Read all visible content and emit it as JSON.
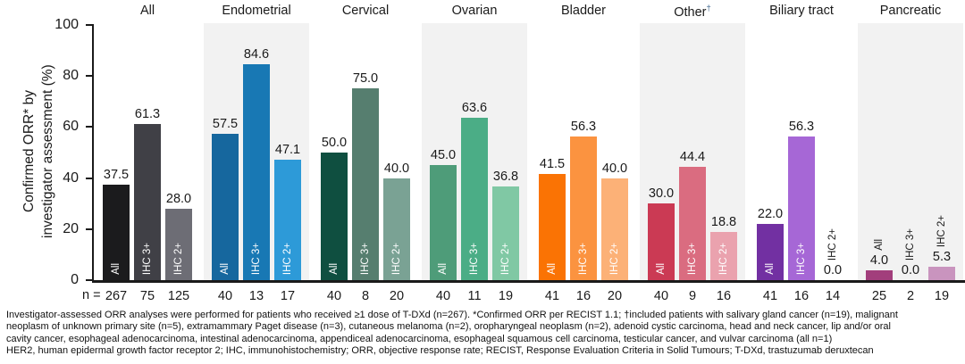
{
  "figure": {
    "y_axis_title_line1": "Confirmed ORR* by",
    "y_axis_title_line2": "investigator assessment (%)",
    "n_prefix": "n =",
    "footnote_lines": [
      "Investigator-assessed ORR analyses were performed for patients who received ≥1 dose of T-DXd (n=267). *Confirmed ORR per RECIST 1.1; †included patients with salivary gland cancer (n=19), malignant",
      "neoplasm of unknown primary site (n=5), extramammary Paget disease (n=3), cutaneous melanoma (n=2), oropharyngeal neoplasm (n=2), adenoid cystic carcinoma, head and neck cancer, lip and/or oral",
      "cavity cancer, esophageal adenocarcinoma, intestinal adenocarcinoma, appendiceal adenocarcinoma, esophageal squamous cell carcinoma, testicular cancer, and vulvar carcinoma (all n=1)",
      "HER2, human epidermal growth factor receptor 2; IHC, immunohistochemistry; ORR, objective response rate; RECIST, Response Evaluation Criteria in Solid Tumours; T-DXd, trastuzumab deruxtecan"
    ]
  },
  "chart_data": {
    "type": "bar",
    "title": "",
    "xlabel": "",
    "ylabel": "Confirmed ORR* by investigator assessment (%)",
    "ylim": [
      0,
      100
    ],
    "yticks": [
      0,
      20,
      40,
      60,
      80,
      100
    ],
    "grid": false,
    "legend_position": "none",
    "bar_labels": [
      "All",
      "IHC 3+",
      "IHC 2+"
    ],
    "groups": [
      {
        "label": "All",
        "sup": "",
        "shaded": false,
        "values": [
          37.5,
          61.3,
          28.0
        ],
        "n": [
          267,
          75,
          125
        ],
        "colors": [
          "#1b1b1d",
          "#404046",
          "#6d6d75"
        ]
      },
      {
        "label": "Endometrial",
        "sup": "",
        "shaded": true,
        "values": [
          57.5,
          84.6,
          47.1
        ],
        "n": [
          40,
          13,
          17
        ],
        "colors": [
          "#16679e",
          "#1878b4",
          "#2d9ad8"
        ]
      },
      {
        "label": "Cervical",
        "sup": "",
        "shaded": false,
        "values": [
          50.0,
          75.0,
          40.0
        ],
        "n": [
          40,
          8,
          20
        ],
        "colors": [
          "#0f4f40",
          "#567e6f",
          "#7aa294"
        ]
      },
      {
        "label": "Ovarian",
        "sup": "",
        "shaded": true,
        "values": [
          45.0,
          63.6,
          36.8
        ],
        "n": [
          40,
          11,
          19
        ],
        "colors": [
          "#4e9c79",
          "#4bad86",
          "#80c8a4"
        ]
      },
      {
        "label": "Bladder",
        "sup": "",
        "shaded": false,
        "values": [
          41.5,
          56.3,
          40.0
        ],
        "n": [
          41,
          16,
          20
        ],
        "colors": [
          "#fa7304",
          "#fb9340",
          "#fcb177"
        ]
      },
      {
        "label": "Other",
        "sup": "†",
        "shaded": true,
        "values": [
          30.0,
          44.4,
          18.8
        ],
        "n": [
          40,
          9,
          16
        ],
        "colors": [
          "#cb3a54",
          "#da6c80",
          "#eaa2ae"
        ]
      },
      {
        "label": "Biliary tract",
        "sup": "",
        "shaded": false,
        "values": [
          22.0,
          56.3,
          0.0
        ],
        "n": [
          41,
          16,
          14
        ],
        "colors": [
          "#7230a2",
          "#a667d6",
          "#a667d6"
        ]
      },
      {
        "label": "Pancreatic",
        "sup": "",
        "shaded": true,
        "values": [
          4.0,
          0.0,
          5.3
        ],
        "n": [
          25,
          2,
          19
        ],
        "colors": [
          "#a23e7c",
          "#a23e7c",
          "#c994be"
        ]
      }
    ]
  }
}
